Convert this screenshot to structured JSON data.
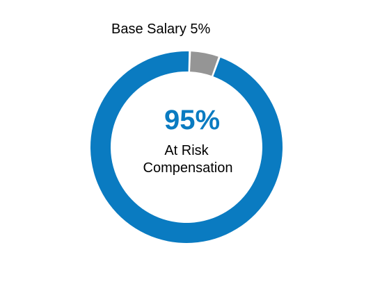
{
  "chart_data": {
    "type": "pie",
    "variant": "donut",
    "slices": [
      {
        "label": "At Risk Compensation",
        "value": 95,
        "color": "#0a7bc1"
      },
      {
        "label": "Base Salary",
        "value": 5,
        "color": "#959595"
      }
    ],
    "slice_labels": {
      "base_salary": "Base Salary 5%"
    },
    "center": {
      "value_text": "95%",
      "label_line1": "At Risk",
      "label_line2": "Compensation",
      "value_color": "#0a7bc1"
    }
  }
}
